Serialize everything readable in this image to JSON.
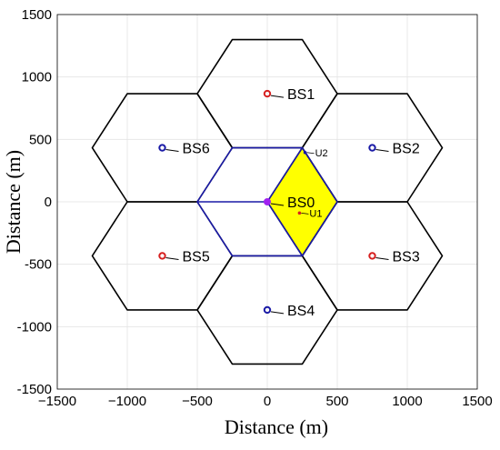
{
  "chart_data": {
    "type": "scatter",
    "xlabel": "Distance (m)",
    "ylabel": "Distance (m)",
    "xlim": [
      -1500,
      1500
    ],
    "ylim": [
      -1500,
      1500
    ],
    "xticks": [
      -1500,
      -1000,
      -500,
      0,
      500,
      1000,
      1500
    ],
    "yticks": [
      -1500,
      -1000,
      -500,
      0,
      500,
      1000,
      1500
    ],
    "xtick_labels": [
      "−1500",
      "−1000",
      "−500",
      "0",
      "500",
      "1000",
      "1500"
    ],
    "ytick_labels": [
      "-1500",
      "-1000",
      "-500",
      "0",
      "500",
      "1000",
      "1500"
    ],
    "grid": true,
    "hex_radius": 500,
    "inner_radius": 433,
    "base_stations": [
      {
        "name": "BS0",
        "x": 0,
        "y": 0,
        "color": "#a020f0"
      },
      {
        "name": "BS1",
        "x": 0,
        "y": 866,
        "color": "#d62020"
      },
      {
        "name": "BS2",
        "x": 750,
        "y": 433,
        "color": "#1a1aa6"
      },
      {
        "name": "BS3",
        "x": 750,
        "y": -433,
        "color": "#d62020"
      },
      {
        "name": "BS4",
        "x": 0,
        "y": -866,
        "color": "#1a1aa6"
      },
      {
        "name": "BS5",
        "x": -750,
        "y": -433,
        "color": "#d62020"
      },
      {
        "name": "BS6",
        "x": -750,
        "y": 433,
        "color": "#1a1aa6"
      }
    ],
    "users": [
      {
        "name": "U1",
        "x": 230,
        "y": -90,
        "color": "#d62020"
      },
      {
        "name": "U2",
        "x": 270,
        "y": 395,
        "color": "#1a1aa6"
      }
    ],
    "highlight_region": {
      "color": "#ffff00",
      "vertices": [
        [
          0,
          0
        ],
        [
          250,
          433
        ],
        [
          500,
          0
        ],
        [
          250,
          -433
        ]
      ]
    },
    "center_cell_color": "#1a1aa6",
    "cell_color": "#000000"
  }
}
